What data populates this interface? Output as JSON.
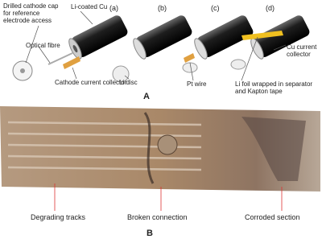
{
  "panel_a": {
    "label": "A",
    "sub_labels": [
      "(a)",
      "(b)",
      "(c)",
      "(d)"
    ],
    "callouts": [
      "Drilled cathode cap for reference electrode access",
      "Li-coated Cu",
      "Optical fibre",
      "Cathode current collector",
      "Li disc",
      "Pt wire",
      "Cu current collector",
      "Li foil wrapped in separator and Kapton tape"
    ]
  },
  "panel_b": {
    "label": "B",
    "annotations": [
      "Degrading tracks",
      "Broken connection",
      "Corroded section"
    ]
  }
}
